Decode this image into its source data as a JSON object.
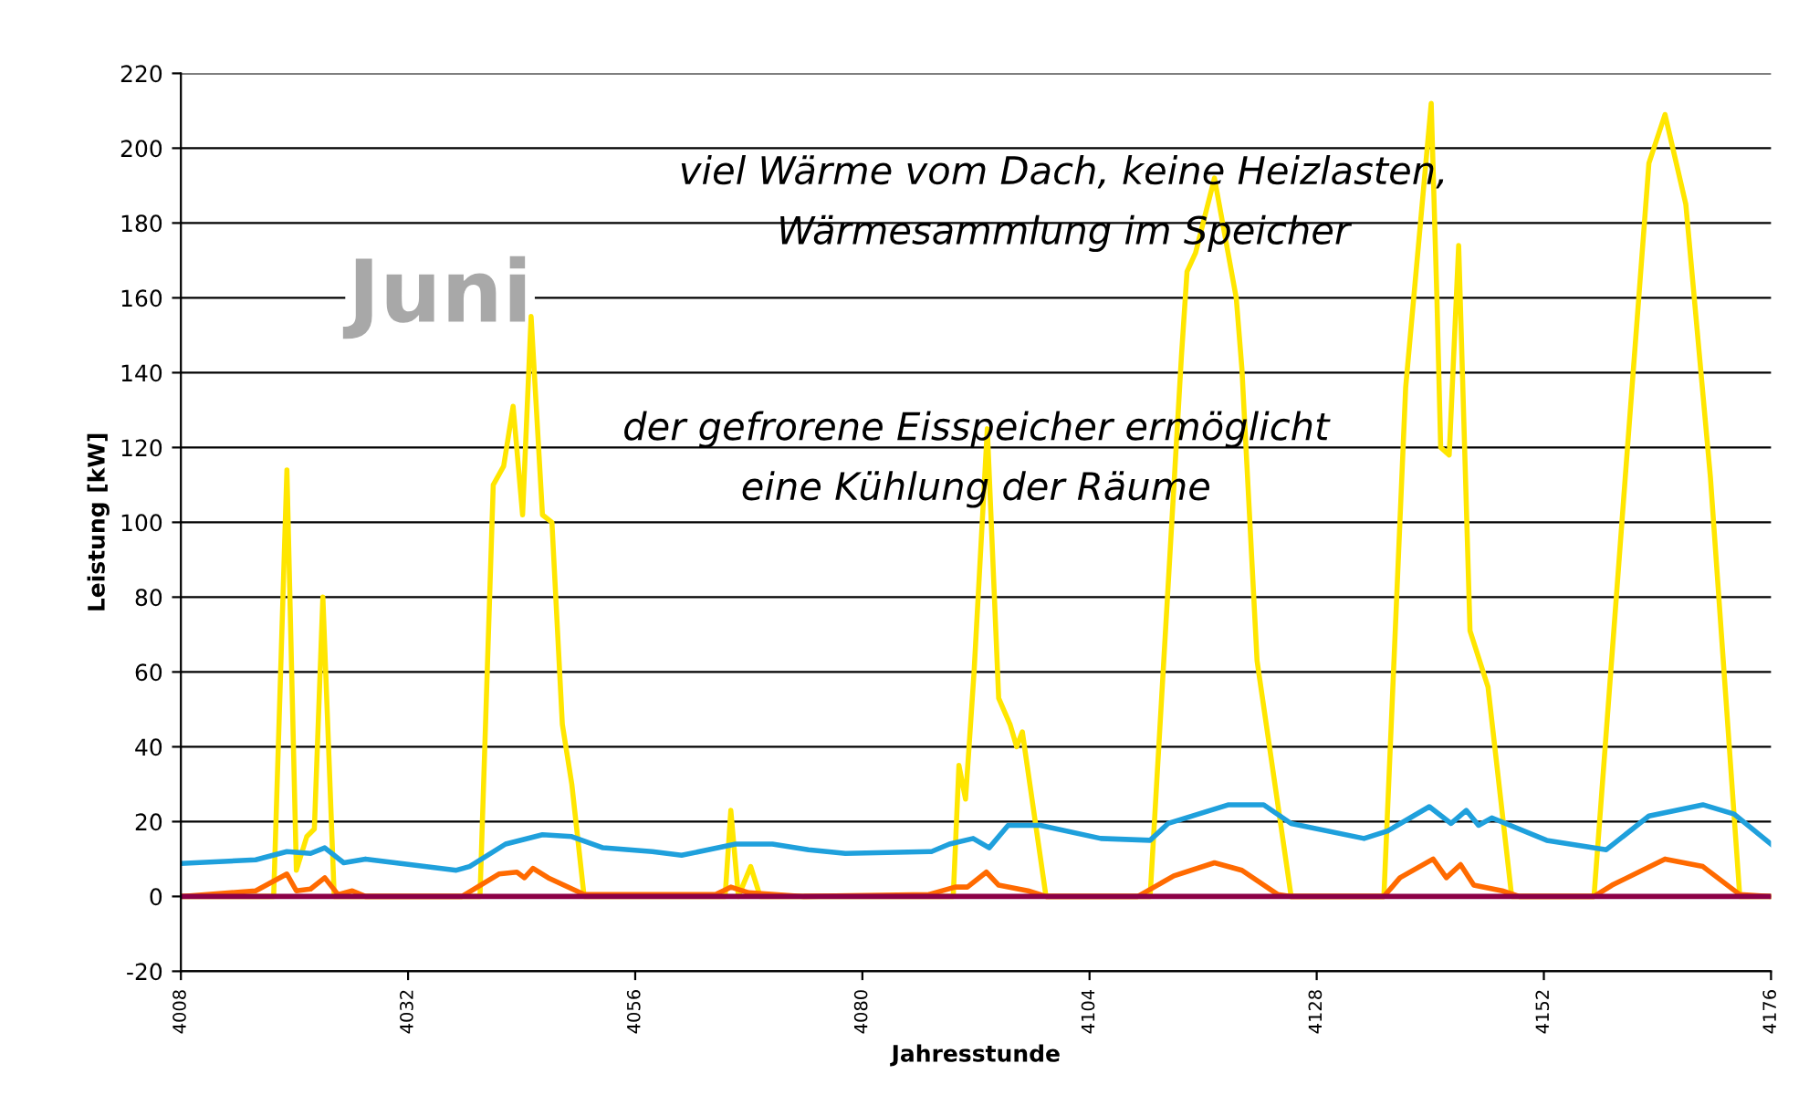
{
  "chart_data": {
    "type": "line",
    "xlabel": "Jahresstunde",
    "ylabel": "Leistung [kW]",
    "xlim": [
      4008,
      4176
    ],
    "xticks": [
      4008,
      4032,
      4056,
      4080,
      4104,
      4128,
      4152,
      4176
    ],
    "ylim": [
      -20,
      220
    ],
    "yticks": [
      -20,
      0,
      20,
      40,
      60,
      80,
      100,
      120,
      140,
      160,
      180,
      200,
      220
    ],
    "grid": "y",
    "legend": false,
    "marker": "none",
    "line_style": "solid",
    "annotations": [
      "Juni",
      "viel Wärme vom Dach, keine Heizlasten,\nWärmesammlung im Speicher",
      "der gefrorene Eisspeicher ermöglicht\neine Kühlung der Räume"
    ],
    "series": [
      {
        "color": "#ffe600",
        "x": [
          4008,
          4017.8,
          4019.2,
          4020.2,
          4021.3,
          4022.1,
          4023.0,
          4024.2,
          4039.6,
          4041.0,
          4042.1,
          4043.1,
          4044.1,
          4045.0,
          4046.2,
          4047.2,
          4048.3,
          4049.3,
          4050.6,
          4065.5,
          4066.1,
          4066.9,
          4068.2,
          4069.2,
          4089.6,
          4090.2,
          4090.9,
          4091.8,
          4093.2,
          4094.4,
          4095.6,
          4096.3,
          4096.9,
          4099.4,
          4110.4,
          4113.7,
          4114.3,
          4115.2,
          4117.2,
          4119.5,
          4120.1,
          4121.7,
          4125.3,
          4135.1,
          4137.4,
          4140.1,
          4140.7,
          4141.1,
          4142.0,
          4143.0,
          4144.2,
          4146.1,
          4148.6,
          4157.3,
          4160.6,
          4163.1,
          4164.8,
          4167.0,
          4169.6,
          4172.7,
          4176
        ],
        "values": [
          0,
          0,
          114,
          7,
          16,
          18,
          80,
          0,
          0,
          110,
          115,
          131,
          102,
          155,
          102,
          100,
          46,
          30,
          0,
          0,
          23,
          0,
          8,
          0,
          0,
          35,
          26,
          60,
          125,
          53,
          46,
          40,
          44,
          0,
          0,
          144,
          167,
          172,
          192,
          160,
          141,
          63,
          0,
          0,
          136,
          212,
          160,
          120,
          118,
          174,
          71,
          56,
          0,
          0,
          112,
          196,
          209,
          185,
          112,
          0,
          0
        ]
      },
      {
        "color": "#1fa0dc",
        "x": [
          4008,
          4015.9,
          4019.2,
          4021.7,
          4023.2,
          4025.2,
          4027.5,
          4037.1,
          4038.5,
          4042.3,
          4046.2,
          4049.3,
          4052.6,
          4057.8,
          4060.9,
          4066.6,
          4070.5,
          4074.3,
          4078.2,
          4087.3,
          4089.2,
          4091.7,
          4093.4,
          4095.4,
          4098.8,
          4105.2,
          4110.4,
          4112.3,
          4118.7,
          4122.4,
          4125.3,
          4133.0,
          4135.5,
          4139.9,
          4142.2,
          4143.8,
          4145.1,
          4146.5,
          4152.3,
          4158.6,
          4163.1,
          4168.8,
          4172.1,
          4176
        ],
        "values": [
          8.8,
          9.8,
          12,
          11.5,
          13,
          9,
          10,
          7,
          8,
          14,
          16.5,
          16,
          13,
          12,
          11,
          14,
          14,
          12.5,
          11.5,
          12,
          14,
          15.5,
          13,
          19,
          19,
          15.5,
          15,
          19.5,
          24.5,
          24.5,
          19.5,
          15.5,
          17.5,
          24,
          19.5,
          23,
          19,
          21,
          15,
          12.5,
          21.5,
          24.5,
          22,
          14
        ]
      },
      {
        "color": "#ff6a00",
        "x": [
          4008,
          4015.9,
          4019.2,
          4020.2,
          4021.7,
          4023.2,
          4024.6,
          4026.1,
          4027.5,
          4037.7,
          4041.6,
          4043.5,
          4044.3,
          4045.2,
          4046.8,
          4050.6,
          4064.5,
          4066.1,
          4068.0,
          4073.8,
          4087.0,
          4089.8,
          4091.1,
          4093.1,
          4094.4,
          4097.5,
          4099.4,
          4109.1,
          4112.9,
          4117.2,
          4120.1,
          4123.9,
          4125.3,
          4135.1,
          4136.8,
          4140.3,
          4141.7,
          4143.2,
          4144.6,
          4147.6,
          4149.4,
          4157.3,
          4159.2,
          4164.8,
          4168.8,
          4172.7,
          4176
        ],
        "values": [
          0,
          1.5,
          6,
          1.5,
          2,
          5,
          0.5,
          1.5,
          0,
          0,
          6,
          6.5,
          5,
          7.5,
          5,
          0.5,
          0.5,
          2.5,
          1,
          0,
          0.5,
          2.5,
          2.5,
          6.5,
          3,
          1.5,
          0,
          0,
          5.5,
          9,
          7,
          0.5,
          0,
          0,
          5,
          10,
          5,
          8.5,
          3,
          1.5,
          0,
          0,
          3,
          10,
          8,
          0.5,
          0
        ]
      },
      {
        "color": "#8b0046",
        "x": [
          4008,
          4176
        ],
        "values": [
          0,
          0
        ]
      }
    ]
  }
}
